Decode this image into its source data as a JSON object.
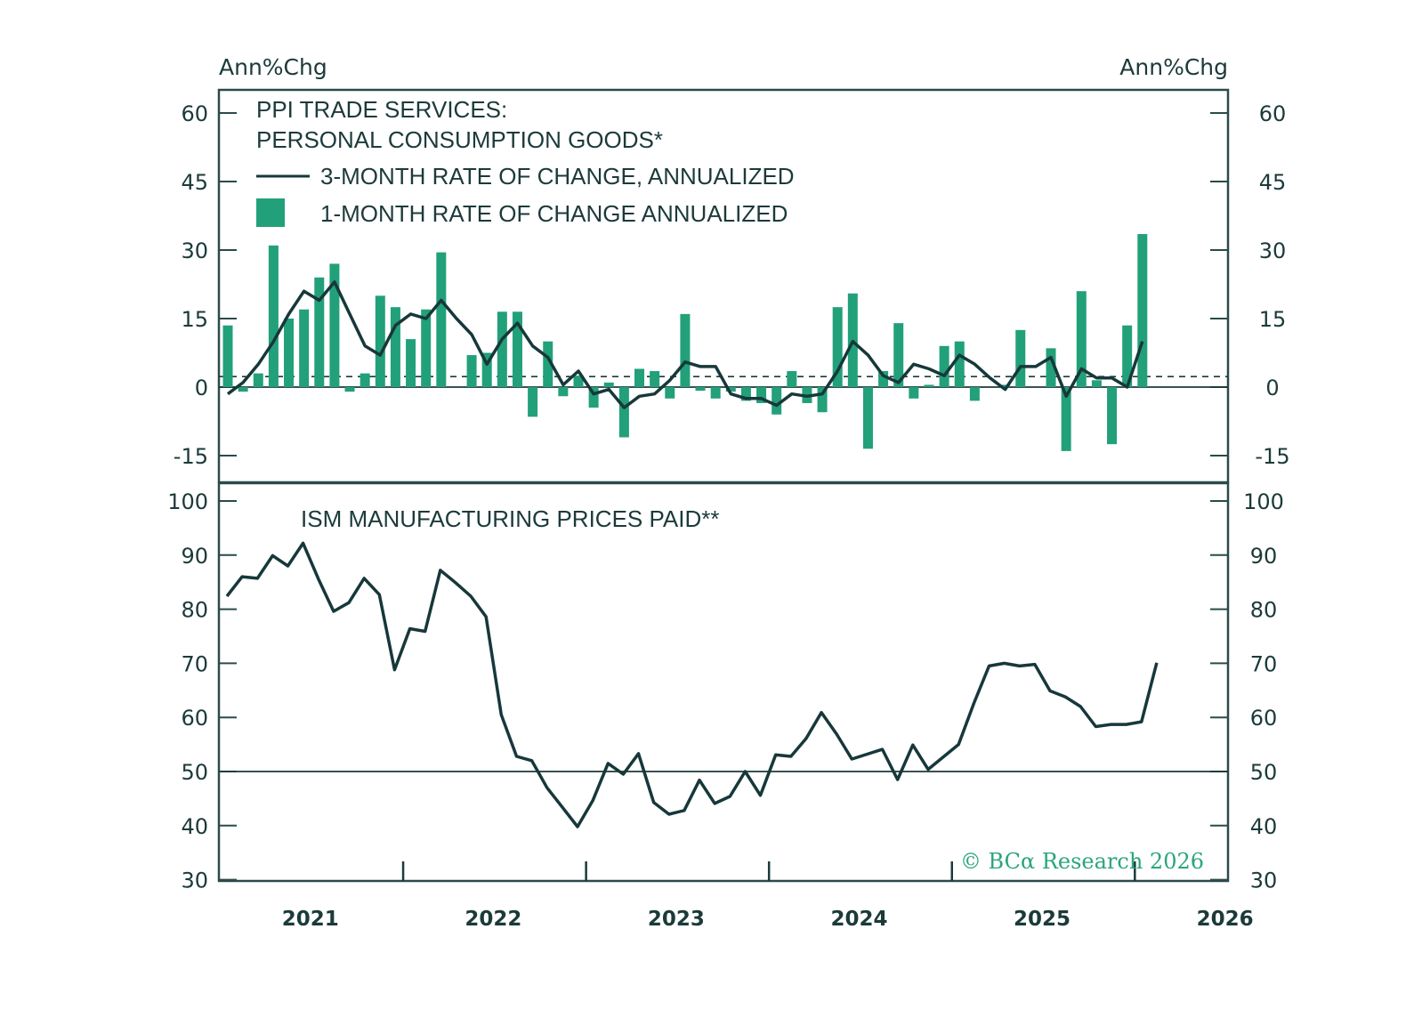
{
  "chart_data": [
    {
      "type": "bar+line",
      "panel": "top",
      "title_lines": [
        "PPI TRADE SERVICES:",
        "PERSONAL CONSUMPTION GOODS*"
      ],
      "unit_label_left": "Ann%Chg",
      "unit_label_right": "Ann%Chg",
      "ylim": [
        -18,
        63
      ],
      "yticks": [
        60,
        45,
        30,
        15,
        0,
        -15
      ],
      "ytick_labels": [
        "60",
        "45",
        "30",
        "15",
        "0",
        "-15"
      ],
      "reference_lines": {
        "zero": 0,
        "dashed": 2.3
      },
      "legend": [
        {
          "key": "line",
          "label": "3-MONTH RATE OF CHANGE, ANNUALIZED"
        },
        {
          "key": "bar",
          "label": "1-MONTH RATE OF CHANGE ANNUALIZED"
        }
      ],
      "x_start": "2021-01",
      "frequency": "monthly",
      "series": [
        {
          "name": "1-MONTH RATE OF CHANGE ANNUALIZED",
          "kind": "bar",
          "values": [
            13.5,
            -1,
            3,
            31,
            15,
            17,
            24,
            27,
            -1,
            3,
            20,
            17.5,
            10.5,
            17,
            29.5,
            0,
            7,
            7.5,
            16.5,
            16.5,
            -6.5,
            10,
            -2,
            2.5,
            -4.5,
            1,
            -11,
            4,
            3.5,
            -2.5,
            16,
            -0.8,
            -2.5,
            -1,
            -3,
            -3.5,
            -6,
            3.5,
            -3.5,
            -5.5,
            17.5,
            20.5,
            -13.5,
            3.5,
            14,
            -2.5,
            0.5,
            9,
            10,
            -3,
            0,
            0.5,
            12.5,
            0,
            8.5,
            -14,
            21,
            1.5,
            -12.5,
            13.5,
            33.5
          ]
        },
        {
          "name": "3-MONTH RATE OF CHANGE, ANNUALIZED",
          "kind": "line",
          "values": [
            -1.5,
            1,
            5,
            10,
            16,
            21,
            19,
            23,
            16,
            9,
            7,
            13.5,
            16,
            15,
            19,
            15,
            11.5,
            5,
            10.5,
            14,
            9,
            6.5,
            0.5,
            3.5,
            -1.5,
            -0.5,
            -4.5,
            -2,
            -1.5,
            1.5,
            5.5,
            4.5,
            4.5,
            -1.5,
            -2.5,
            -2.5,
            -4,
            -1.5,
            -2,
            -1.5,
            3.5,
            10,
            7,
            2.5,
            1,
            5,
            4,
            2.5,
            7,
            5,
            2,
            -0.5,
            4.5,
            4.5,
            6.5,
            -2,
            4,
            2,
            2,
            0,
            10
          ]
        }
      ]
    },
    {
      "type": "line",
      "panel": "bottom",
      "title": "ISM MANUFACTURING PRICES PAID**",
      "ylim": [
        30,
        103
      ],
      "yticks": [
        100,
        90,
        80,
        70,
        60,
        50,
        40,
        30
      ],
      "ytick_labels": [
        "100",
        "90",
        "80",
        "70",
        "60",
        "50",
        "40",
        "30"
      ],
      "reference_lines": {
        "solid": 50
      },
      "x_start": "2021-01",
      "frequency": "monthly",
      "series": [
        {
          "name": "ISM MANUFACTURING PRICES PAID",
          "values": [
            82.4,
            86,
            85.7,
            89.9,
            88,
            92.2,
            85.6,
            79.6,
            81.2,
            85.7,
            82.7,
            68.8,
            76.4,
            75.9,
            87.2,
            84.9,
            82.4,
            78.6,
            60.5,
            52.8,
            52.0,
            47.0,
            43.4,
            39.8,
            44.6,
            51.5,
            49.5,
            53.3,
            44.3,
            42.1,
            42.8,
            48.4,
            44.1,
            45.4,
            50.0,
            45.6,
            53.1,
            52.8,
            56.1,
            60.9,
            56.9,
            52.3,
            53.2,
            54.1,
            48.5,
            54.9,
            50.4,
            52.7,
            55.0,
            62.6,
            69.5,
            70.0,
            69.5,
            69.8,
            64.9,
            63.8,
            62.0,
            58.3,
            58.7,
            58.7,
            59.2,
            70.1
          ]
        }
      ]
    }
  ],
  "x_axis": {
    "labels": [
      "2021",
      "2022",
      "2023",
      "2024",
      "2025",
      "2026"
    ],
    "range": [
      "2021-01",
      "2026-07"
    ]
  },
  "credit": "© BCα Research 2026",
  "colors": {
    "bar": "#22a07a",
    "line": "#17383a",
    "axis": "#2c4a4a",
    "credit": "#2aa57a"
  }
}
